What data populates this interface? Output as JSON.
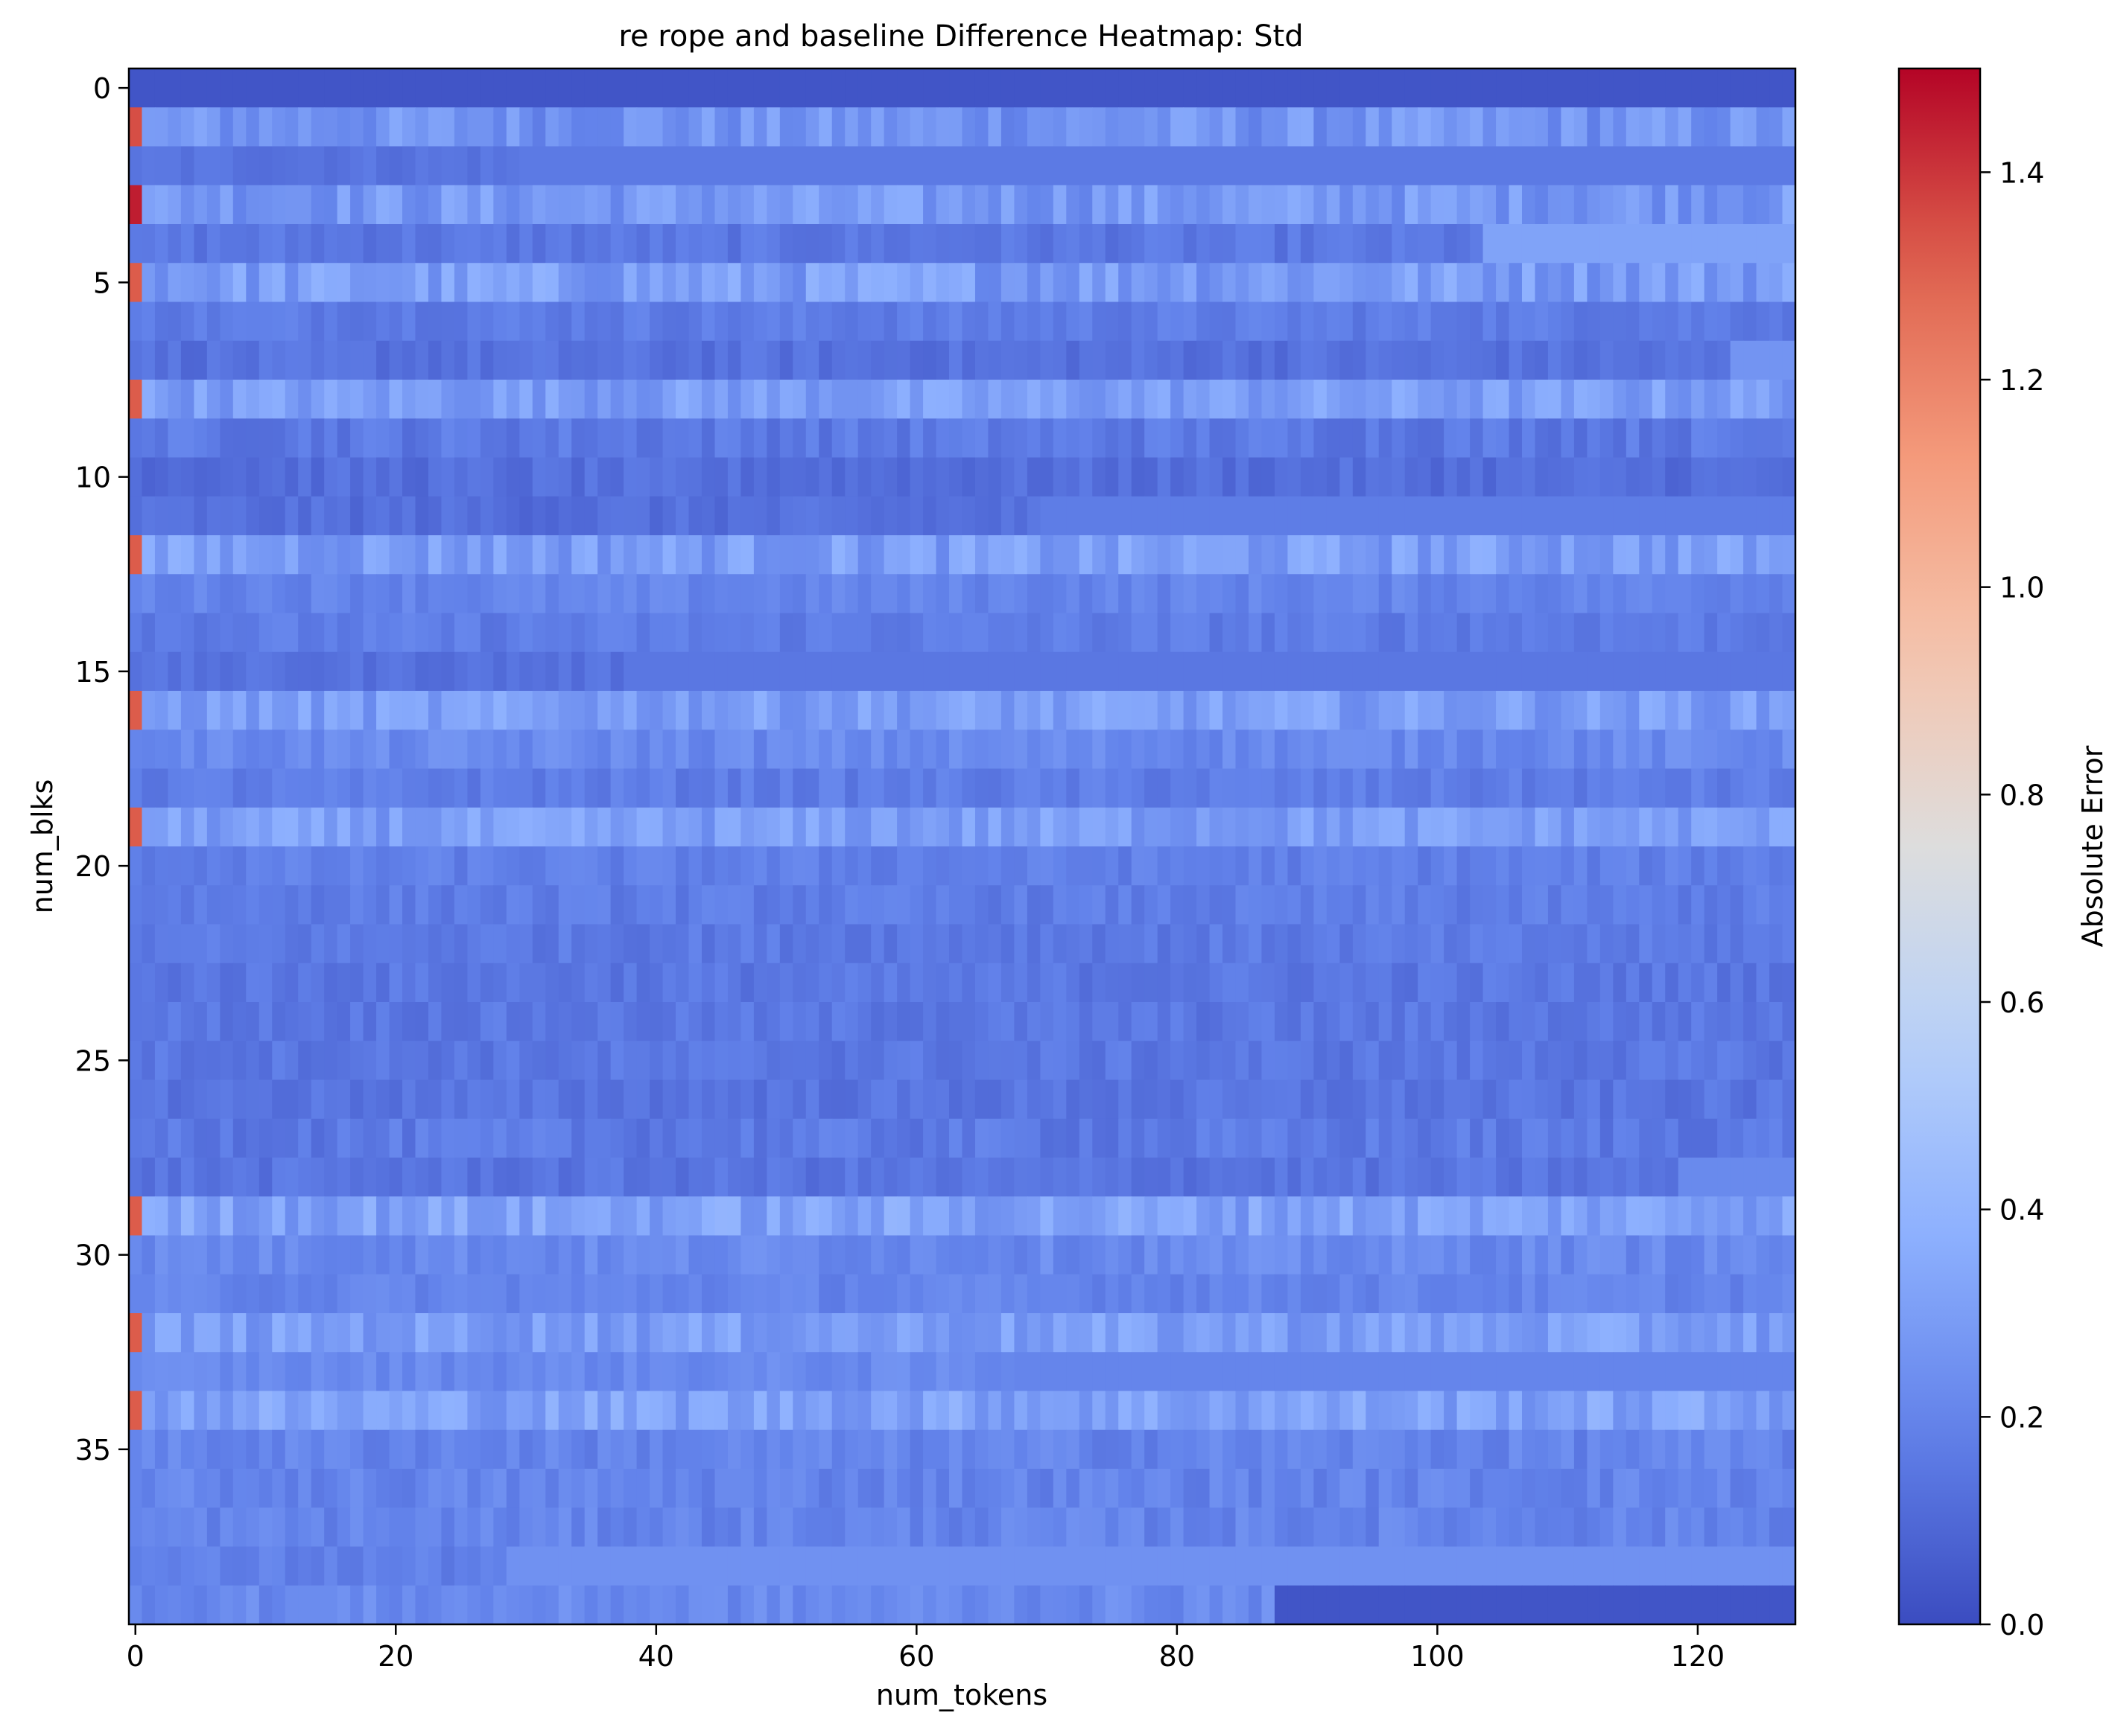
{
  "chart_data": {
    "type": "heatmap",
    "title": "re rope and baseline Difference Heatmap: Std",
    "xlabel": "num_tokens",
    "ylabel": "num_blks",
    "n_rows": 40,
    "n_cols": 128,
    "xlim": [
      -0.5,
      127.5
    ],
    "ylim": [
      39.5,
      -0.5
    ],
    "x_ticks": [
      0,
      20,
      40,
      60,
      80,
      100,
      120
    ],
    "y_ticks": [
      0,
      5,
      10,
      15,
      20,
      25,
      30,
      35
    ],
    "colormap": "coolwarm",
    "colorbar": {
      "label": "Absolute Error",
      "min": 0.0,
      "max": 1.5,
      "ticks": [
        "0.0",
        "0.2",
        "0.4",
        "0.6",
        "0.8",
        "1.0",
        "1.2",
        "1.4"
      ]
    },
    "row_summary": [
      {
        "row": 0,
        "first_col": 0.03,
        "level": 0.03,
        "noise": 0.0
      },
      {
        "row": 1,
        "first_col": 1.35,
        "level": 0.26,
        "noise": 0.09
      },
      {
        "row": 2,
        "first_col": 0.14,
        "level": 0.14,
        "noise": 0.03,
        "segments": [
          {
            "from": 30,
            "level": 0.16,
            "noise": 0.0
          }
        ]
      },
      {
        "row": 3,
        "first_col": 1.45,
        "level": 0.28,
        "noise": 0.09
      },
      {
        "row": 4,
        "first_col": 0.16,
        "level": 0.15,
        "noise": 0.04,
        "segments": [
          {
            "from": 104,
            "level": 0.32,
            "noise": 0.0
          }
        ]
      },
      {
        "row": 5,
        "first_col": 1.32,
        "level": 0.3,
        "noise": 0.1
      },
      {
        "row": 6,
        "first_col": 0.17,
        "level": 0.17,
        "noise": 0.04
      },
      {
        "row": 7,
        "first_col": 0.14,
        "level": 0.13,
        "noise": 0.04,
        "segments": [
          {
            "from": 123,
            "level": 0.26,
            "noise": 0.0
          }
        ]
      },
      {
        "row": 8,
        "first_col": 1.32,
        "level": 0.3,
        "noise": 0.08
      },
      {
        "row": 9,
        "first_col": 0.15,
        "level": 0.16,
        "noise": 0.05
      },
      {
        "row": 10,
        "first_col": 0.12,
        "level": 0.12,
        "noise": 0.04
      },
      {
        "row": 11,
        "first_col": 0.12,
        "level": 0.12,
        "noise": 0.04,
        "segments": [
          {
            "from": 70,
            "level": 0.17,
            "noise": 0.0
          }
        ]
      },
      {
        "row": 12,
        "first_col": 1.32,
        "level": 0.3,
        "noise": 0.09
      },
      {
        "row": 13,
        "first_col": 0.2,
        "level": 0.2,
        "noise": 0.04
      },
      {
        "row": 14,
        "first_col": 0.17,
        "level": 0.17,
        "noise": 0.04
      },
      {
        "row": 15,
        "first_col": 0.13,
        "level": 0.13,
        "noise": 0.03,
        "segments": [
          {
            "from": 38,
            "level": 0.15,
            "noise": 0.0
          }
        ]
      },
      {
        "row": 16,
        "first_col": 1.32,
        "level": 0.3,
        "noise": 0.08
      },
      {
        "row": 17,
        "first_col": 0.2,
        "level": 0.22,
        "noise": 0.05
      },
      {
        "row": 18,
        "first_col": 0.18,
        "level": 0.17,
        "noise": 0.04
      },
      {
        "row": 19,
        "first_col": 1.32,
        "level": 0.3,
        "noise": 0.08
      },
      {
        "row": 20,
        "first_col": 0.18,
        "level": 0.18,
        "noise": 0.04
      },
      {
        "row": 21,
        "first_col": 0.17,
        "level": 0.17,
        "noise": 0.04
      },
      {
        "row": 22,
        "first_col": 0.16,
        "level": 0.16,
        "noise": 0.04
      },
      {
        "row": 23,
        "first_col": 0.15,
        "level": 0.15,
        "noise": 0.04
      },
      {
        "row": 24,
        "first_col": 0.15,
        "level": 0.15,
        "noise": 0.04
      },
      {
        "row": 25,
        "first_col": 0.16,
        "level": 0.15,
        "noise": 0.04
      },
      {
        "row": 26,
        "first_col": 0.15,
        "level": 0.14,
        "noise": 0.04
      },
      {
        "row": 27,
        "first_col": 0.16,
        "level": 0.16,
        "noise": 0.05
      },
      {
        "row": 28,
        "first_col": 0.14,
        "level": 0.14,
        "noise": 0.04,
        "segments": [
          {
            "from": 119,
            "level": 0.22,
            "noise": 0.0
          }
        ]
      },
      {
        "row": 29,
        "first_col": 1.32,
        "level": 0.32,
        "noise": 0.09
      },
      {
        "row": 30,
        "first_col": 0.22,
        "level": 0.22,
        "noise": 0.05
      },
      {
        "row": 31,
        "first_col": 0.2,
        "level": 0.2,
        "noise": 0.04
      },
      {
        "row": 32,
        "first_col": 1.32,
        "level": 0.3,
        "noise": 0.08
      },
      {
        "row": 33,
        "first_col": 0.22,
        "level": 0.22,
        "noise": 0.04,
        "segments": [
          {
            "from": 68,
            "level": 0.2,
            "noise": 0.0
          }
        ]
      },
      {
        "row": 34,
        "first_col": 1.32,
        "level": 0.32,
        "noise": 0.09
      },
      {
        "row": 35,
        "first_col": 0.2,
        "level": 0.2,
        "noise": 0.05
      },
      {
        "row": 36,
        "first_col": 0.2,
        "level": 0.2,
        "noise": 0.05
      },
      {
        "row": 37,
        "first_col": 0.2,
        "level": 0.2,
        "noise": 0.05
      },
      {
        "row": 38,
        "first_col": 0.18,
        "level": 0.18,
        "noise": 0.04,
        "segments": [
          {
            "from": 29,
            "level": 0.25,
            "noise": 0.0
          }
        ]
      },
      {
        "row": 39,
        "first_col": 0.22,
        "level": 0.22,
        "noise": 0.05,
        "segments": [
          {
            "from": 88,
            "level": 0.03,
            "noise": 0.0
          }
        ]
      }
    ]
  }
}
